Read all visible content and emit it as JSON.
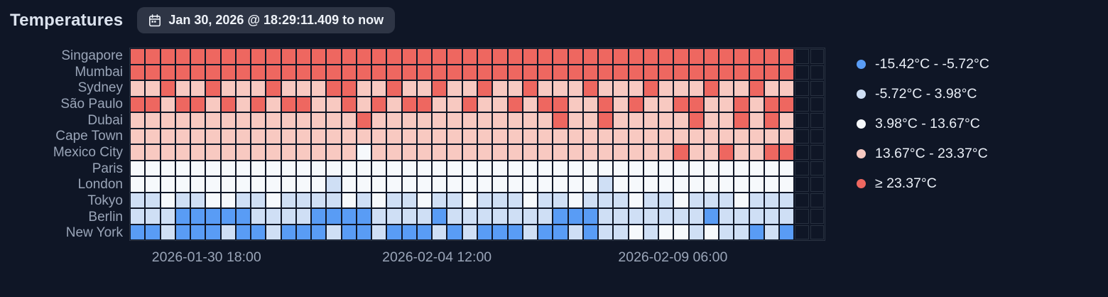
{
  "header": {
    "title": "Temperatures",
    "time_range": "Jan 30, 2026 @ 18:29:11.409 to now",
    "calendar_icon": "calendar-icon"
  },
  "colors": {
    "background": "#0f1626",
    "grid_line": "#27303f",
    "axis_text": "#9aa5b8",
    "badge_background": "#2e3545",
    "title_text": "#dce3ee",
    "legend_text": "#e8edf5"
  },
  "chart_data": {
    "type": "heatmap",
    "title": "Temperatures",
    "legend_position": "right",
    "x_ticks": [
      {
        "label": "2026-01-30 18:00",
        "position": 0.111
      },
      {
        "label": "2026-02-04 12:00",
        "position": 0.442
      },
      {
        "label": "2026-02-09 06:00",
        "position": 0.781
      }
    ],
    "y_categories": [
      "Singapore",
      "Mumbai",
      "Sydney",
      "São Paulo",
      "Dubai",
      "Cape Town",
      "Mexico City",
      "Paris",
      "London",
      "Tokyo",
      "Berlin",
      "New York"
    ],
    "bands": [
      {
        "label": "-15.42°C - -5.72°C",
        "color": "#599cf5"
      },
      {
        "label": "-5.72°C - 3.98°C",
        "color": "#cfdff5"
      },
      {
        "label": "3.98°C - 13.67°C",
        "color": "#f6f9fc"
      },
      {
        "label": "13.67°C - 23.37°C",
        "color": "#f8c9c1"
      },
      {
        "label": "≥ 23.37°C",
        "color": "#ee6760"
      }
    ],
    "values_are": "band_index_per_cell",
    "empty_trailing_columns": 2,
    "values": [
      [
        4,
        4,
        4,
        4,
        4,
        4,
        4,
        4,
        4,
        4,
        4,
        4,
        4,
        4,
        4,
        4,
        4,
        4,
        4,
        4,
        4,
        4,
        4,
        4,
        4,
        4,
        4,
        4,
        4,
        4,
        4,
        4,
        4,
        4,
        4,
        4,
        4,
        4,
        4,
        4,
        4,
        4,
        4,
        4
      ],
      [
        4,
        4,
        4,
        4,
        4,
        4,
        4,
        4,
        4,
        4,
        4,
        4,
        4,
        4,
        4,
        4,
        4,
        4,
        4,
        4,
        4,
        4,
        4,
        4,
        4,
        4,
        4,
        4,
        4,
        4,
        4,
        4,
        4,
        4,
        4,
        4,
        4,
        4,
        4,
        4,
        4,
        4,
        4,
        4
      ],
      [
        3,
        3,
        4,
        3,
        3,
        4,
        3,
        3,
        3,
        4,
        3,
        3,
        3,
        4,
        4,
        3,
        3,
        4,
        3,
        3,
        4,
        3,
        3,
        4,
        3,
        3,
        4,
        3,
        3,
        3,
        4,
        3,
        3,
        3,
        4,
        3,
        3,
        3,
        4,
        3,
        3,
        4,
        3,
        3
      ],
      [
        4,
        4,
        3,
        4,
        4,
        3,
        4,
        3,
        4,
        3,
        4,
        4,
        3,
        3,
        4,
        3,
        4,
        3,
        4,
        4,
        3,
        3,
        4,
        3,
        3,
        4,
        3,
        4,
        4,
        3,
        3,
        4,
        3,
        4,
        3,
        3,
        4,
        4,
        3,
        3,
        4,
        3,
        4,
        4
      ],
      [
        3,
        3,
        3,
        3,
        3,
        3,
        3,
        3,
        3,
        3,
        3,
        3,
        3,
        3,
        3,
        4,
        3,
        3,
        3,
        3,
        3,
        3,
        3,
        3,
        3,
        3,
        3,
        3,
        4,
        3,
        3,
        4,
        3,
        3,
        3,
        3,
        3,
        4,
        3,
        3,
        4,
        3,
        4,
        3
      ],
      [
        3,
        3,
        3,
        3,
        3,
        3,
        3,
        3,
        3,
        3,
        3,
        3,
        3,
        3,
        3,
        3,
        3,
        3,
        3,
        3,
        3,
        3,
        3,
        3,
        3,
        3,
        3,
        3,
        3,
        3,
        3,
        3,
        3,
        3,
        3,
        3,
        3,
        3,
        3,
        3,
        3,
        3,
        3,
        3
      ],
      [
        3,
        3,
        3,
        3,
        3,
        3,
        3,
        3,
        3,
        3,
        3,
        3,
        3,
        3,
        3,
        2,
        3,
        3,
        3,
        3,
        3,
        3,
        3,
        3,
        3,
        3,
        3,
        3,
        3,
        3,
        3,
        3,
        3,
        3,
        3,
        3,
        4,
        3,
        3,
        4,
        3,
        3,
        4,
        4
      ],
      [
        2,
        2,
        2,
        2,
        2,
        2,
        2,
        2,
        2,
        2,
        2,
        2,
        2,
        2,
        2,
        2,
        2,
        2,
        2,
        2,
        2,
        2,
        2,
        2,
        2,
        2,
        2,
        2,
        2,
        2,
        2,
        2,
        2,
        2,
        2,
        2,
        2,
        2,
        2,
        2,
        2,
        2,
        2,
        2
      ],
      [
        2,
        2,
        2,
        2,
        2,
        2,
        2,
        2,
        2,
        2,
        2,
        2,
        2,
        1,
        2,
        2,
        2,
        2,
        2,
        2,
        2,
        2,
        2,
        2,
        2,
        2,
        2,
        2,
        2,
        2,
        2,
        1,
        2,
        2,
        2,
        2,
        2,
        2,
        2,
        2,
        2,
        2,
        2,
        2
      ],
      [
        1,
        1,
        2,
        1,
        1,
        2,
        2,
        1,
        1,
        2,
        1,
        1,
        1,
        1,
        2,
        1,
        2,
        1,
        1,
        2,
        1,
        1,
        2,
        1,
        1,
        1,
        2,
        1,
        1,
        2,
        1,
        1,
        1,
        2,
        1,
        1,
        2,
        1,
        1,
        1,
        2,
        1,
        1,
        1
      ],
      [
        1,
        1,
        1,
        0,
        0,
        0,
        0,
        0,
        1,
        1,
        1,
        1,
        0,
        0,
        0,
        0,
        1,
        1,
        1,
        1,
        0,
        1,
        1,
        1,
        1,
        1,
        1,
        1,
        0,
        0,
        0,
        1,
        1,
        1,
        1,
        1,
        1,
        1,
        0,
        1,
        1,
        1,
        1,
        1
      ],
      [
        0,
        0,
        1,
        0,
        0,
        0,
        1,
        0,
        0,
        1,
        0,
        0,
        0,
        1,
        0,
        0,
        1,
        0,
        0,
        0,
        1,
        0,
        1,
        0,
        0,
        0,
        1,
        0,
        0,
        1,
        0,
        1,
        1,
        2,
        1,
        2,
        2,
        1,
        2,
        1,
        1,
        0,
        1,
        0
      ]
    ]
  }
}
